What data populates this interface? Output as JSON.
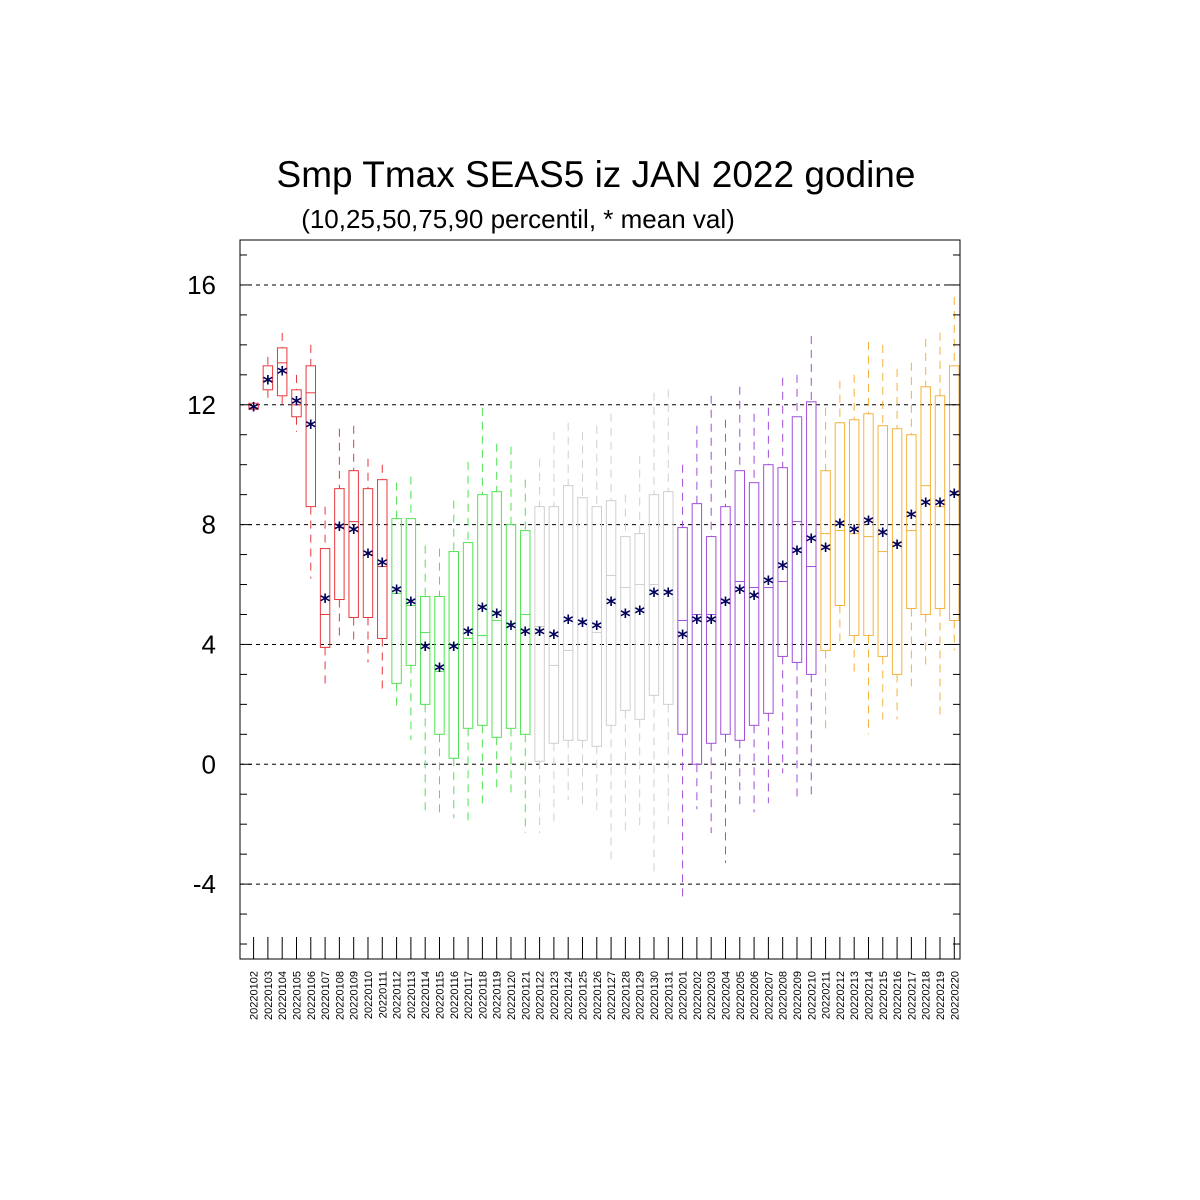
{
  "chart_data": {
    "type": "box",
    "title": "Smp Tmax SEAS5 iz JAN 2022 godine",
    "subtitle": "(10,25,50,75,90 percentil, * mean val)",
    "ylim": [
      -6.5,
      17.5
    ],
    "yticks": [
      -4,
      0,
      4,
      8,
      12,
      16
    ],
    "ytick_labels": [
      "-4",
      "0",
      "4",
      "8",
      "12",
      "16"
    ],
    "grid": "horizontal dashed",
    "box_keys": [
      "p10",
      "p25",
      "p50",
      "p75",
      "p90"
    ],
    "group_colors": {
      "red": "#e8383d",
      "green": "#52e352",
      "grey": "#cfcfcf",
      "purple": "#a04fd8",
      "orange": "#f4b23c",
      "mean": "#00005a"
    },
    "categories": [
      "20220102",
      "20220103",
      "20220104",
      "20220105",
      "20220106",
      "20220107",
      "20220108",
      "20220109",
      "20220110",
      "20220111",
      "20220112",
      "20220113",
      "20220114",
      "20220115",
      "20220116",
      "20220117",
      "20220118",
      "20220119",
      "20220120",
      "20220121",
      "20220122",
      "20220123",
      "20220124",
      "20220125",
      "20220126",
      "20220127",
      "20220128",
      "20220129",
      "20220130",
      "20220131",
      "20220201",
      "20220202",
      "20220203",
      "20220204",
      "20220205",
      "20220206",
      "20220207",
      "20220208",
      "20220209",
      "20220210",
      "20220211",
      "20220212",
      "20220213",
      "20220214",
      "20220215",
      "20220216",
      "20220217",
      "20220218",
      "20220219",
      "20220220"
    ],
    "boxes": [
      {
        "g": "red",
        "b": [
          11.8,
          11.85,
          11.9,
          12.05,
          12.1
        ],
        "m": 11.9
      },
      {
        "g": "red",
        "b": [
          12.1,
          12.5,
          12.8,
          13.3,
          13.6
        ],
        "m": 12.8
      },
      {
        "g": "red",
        "b": [
          11.9,
          12.3,
          13.4,
          13.9,
          14.4
        ],
        "m": 13.1
      },
      {
        "g": "red",
        "b": [
          11.1,
          11.6,
          12.0,
          12.5,
          13.0
        ],
        "m": 12.1
      },
      {
        "g": "red",
        "b": [
          6.2,
          8.6,
          12.4,
          13.3,
          14.0
        ],
        "m": 11.3
      },
      {
        "g": "red",
        "b": [
          2.7,
          3.9,
          5.0,
          7.2,
          8.6
        ],
        "m": 5.5
      },
      {
        "g": "red",
        "b": [
          4.3,
          5.5,
          7.9,
          9.2,
          11.2
        ],
        "m": 7.9
      },
      {
        "g": "red",
        "b": [
          4.1,
          4.9,
          8.1,
          9.8,
          11.3
        ],
        "m": 7.8
      },
      {
        "g": "red",
        "b": [
          3.4,
          4.9,
          7.0,
          9.2,
          10.2
        ],
        "m": 7.0
      },
      {
        "g": "red",
        "b": [
          2.4,
          4.2,
          6.6,
          9.5,
          10.0
        ],
        "m": 6.7
      },
      {
        "g": "green",
        "b": [
          1.8,
          2.7,
          5.7,
          8.2,
          9.4
        ],
        "m": 5.8
      },
      {
        "g": "green",
        "b": [
          0.8,
          3.3,
          5.3,
          8.2,
          9.6
        ],
        "m": 5.4
      },
      {
        "g": "green",
        "b": [
          -1.7,
          2.0,
          4.4,
          5.6,
          7.3
        ],
        "m": 3.9
      },
      {
        "g": "green",
        "b": [
          -1.7,
          1.0,
          3.1,
          5.6,
          7.2
        ],
        "m": 3.2
      },
      {
        "g": "green",
        "b": [
          -1.8,
          0.2,
          4.0,
          7.1,
          8.8
        ],
        "m": 3.9
      },
      {
        "g": "green",
        "b": [
          -1.9,
          1.2,
          4.2,
          7.4,
          10.1
        ],
        "m": 4.4
      },
      {
        "g": "green",
        "b": [
          -1.3,
          1.3,
          4.3,
          9.0,
          11.9
        ],
        "m": 5.2
      },
      {
        "g": "green",
        "b": [
          -0.9,
          0.9,
          4.8,
          9.1,
          10.7
        ],
        "m": 5.0
      },
      {
        "g": "green",
        "b": [
          -1.1,
          1.2,
          4.7,
          8.0,
          10.6
        ],
        "m": 4.6
      },
      {
        "g": "green",
        "b": [
          -2.3,
          1.0,
          5.0,
          7.8,
          9.5
        ],
        "m": 4.4
      },
      {
        "g": "grey",
        "b": [
          -2.3,
          0.1,
          4.6,
          8.6,
          10.2
        ],
        "m": 4.4
      },
      {
        "g": "grey",
        "b": [
          -2.1,
          0.7,
          3.3,
          8.6,
          11.1
        ],
        "m": 4.3
      },
      {
        "g": "grey",
        "b": [
          -1.2,
          0.8,
          3.8,
          9.3,
          11.4
        ],
        "m": 4.8
      },
      {
        "g": "grey",
        "b": [
          -1.4,
          0.8,
          4.8,
          8.9,
          11.1
        ],
        "m": 4.7
      },
      {
        "g": "grey",
        "b": [
          -1.7,
          0.6,
          4.4,
          8.6,
          11.3
        ],
        "m": 4.6
      },
      {
        "g": "grey",
        "b": [
          -3.2,
          1.3,
          6.3,
          8.8,
          11.7
        ],
        "m": 5.4
      },
      {
        "g": "grey",
        "b": [
          -2.4,
          1.8,
          5.9,
          7.6,
          9.0
        ],
        "m": 5.0
      },
      {
        "g": "grey",
        "b": [
          -2.2,
          1.5,
          6.0,
          7.7,
          10.3
        ],
        "m": 5.1
      },
      {
        "g": "grey",
        "b": [
          -3.6,
          2.3,
          6.0,
          9.0,
          12.4
        ],
        "m": 5.7
      },
      {
        "g": "grey",
        "b": [
          -2.1,
          2.0,
          5.8,
          9.1,
          12.5
        ],
        "m": 5.7
      },
      {
        "g": "purple",
        "b": [
          -4.5,
          1.0,
          4.8,
          7.9,
          10.0
        ],
        "m": 4.3
      },
      {
        "g": "purple",
        "b": [
          -1.5,
          0.0,
          5.0,
          8.7,
          11.3
        ],
        "m": 4.8
      },
      {
        "g": "purple",
        "b": [
          -2.3,
          0.7,
          5.0,
          7.6,
          12.3
        ],
        "m": 4.8
      },
      {
        "g": "purple",
        "b": [
          -3.3,
          1.0,
          5.4,
          8.6,
          11.5
        ],
        "m": 5.4
      },
      {
        "g": "purple",
        "b": [
          -1.4,
          0.8,
          6.1,
          9.8,
          12.6
        ],
        "m": 5.8
      },
      {
        "g": "purple",
        "b": [
          -1.6,
          1.3,
          5.9,
          9.4,
          11.7
        ],
        "m": 5.6
      },
      {
        "g": "purple",
        "b": [
          -1.3,
          1.7,
          5.9,
          10.0,
          11.9
        ],
        "m": 6.1
      },
      {
        "g": "purple",
        "b": [
          -0.3,
          3.6,
          6.1,
          9.9,
          12.9
        ],
        "m": 6.6
      },
      {
        "g": "purple",
        "b": [
          -1.1,
          3.4,
          8.1,
          11.6,
          13.0
        ],
        "m": 7.1
      },
      {
        "g": "purple",
        "b": [
          -1.1,
          3.0,
          6.6,
          12.1,
          14.3
        ],
        "m": 7.5
      },
      {
        "g": "orange",
        "b": [
          1.2,
          3.8,
          7.7,
          9.8,
          11.9
        ],
        "m": 7.2
      },
      {
        "g": "orange",
        "b": [
          3.9,
          5.3,
          7.8,
          11.4,
          12.8
        ],
        "m": 8.0
      },
      {
        "g": "orange",
        "b": [
          2.9,
          4.3,
          7.7,
          11.5,
          13.0
        ],
        "m": 7.8
      },
      {
        "g": "orange",
        "b": [
          1.0,
          4.3,
          7.6,
          11.7,
          14.1
        ],
        "m": 8.1
      },
      {
        "g": "orange",
        "b": [
          1.5,
          3.6,
          7.1,
          11.3,
          14.0
        ],
        "m": 7.7
      },
      {
        "g": "orange",
        "b": [
          1.5,
          3.0,
          7.4,
          11.2,
          13.2
        ],
        "m": 7.3
      },
      {
        "g": "orange",
        "b": [
          2.5,
          5.2,
          7.8,
          11.0,
          13.4
        ],
        "m": 8.3
      },
      {
        "g": "orange",
        "b": [
          3.2,
          5.0,
          9.3,
          12.6,
          14.2
        ],
        "m": 8.7
      },
      {
        "g": "orange",
        "b": [
          1.5,
          5.2,
          8.6,
          12.3,
          14.4
        ],
        "m": 8.7
      },
      {
        "g": "orange",
        "b": [
          3.8,
          4.8,
          9.1,
          13.3,
          15.6
        ],
        "m": 9.0
      }
    ]
  }
}
